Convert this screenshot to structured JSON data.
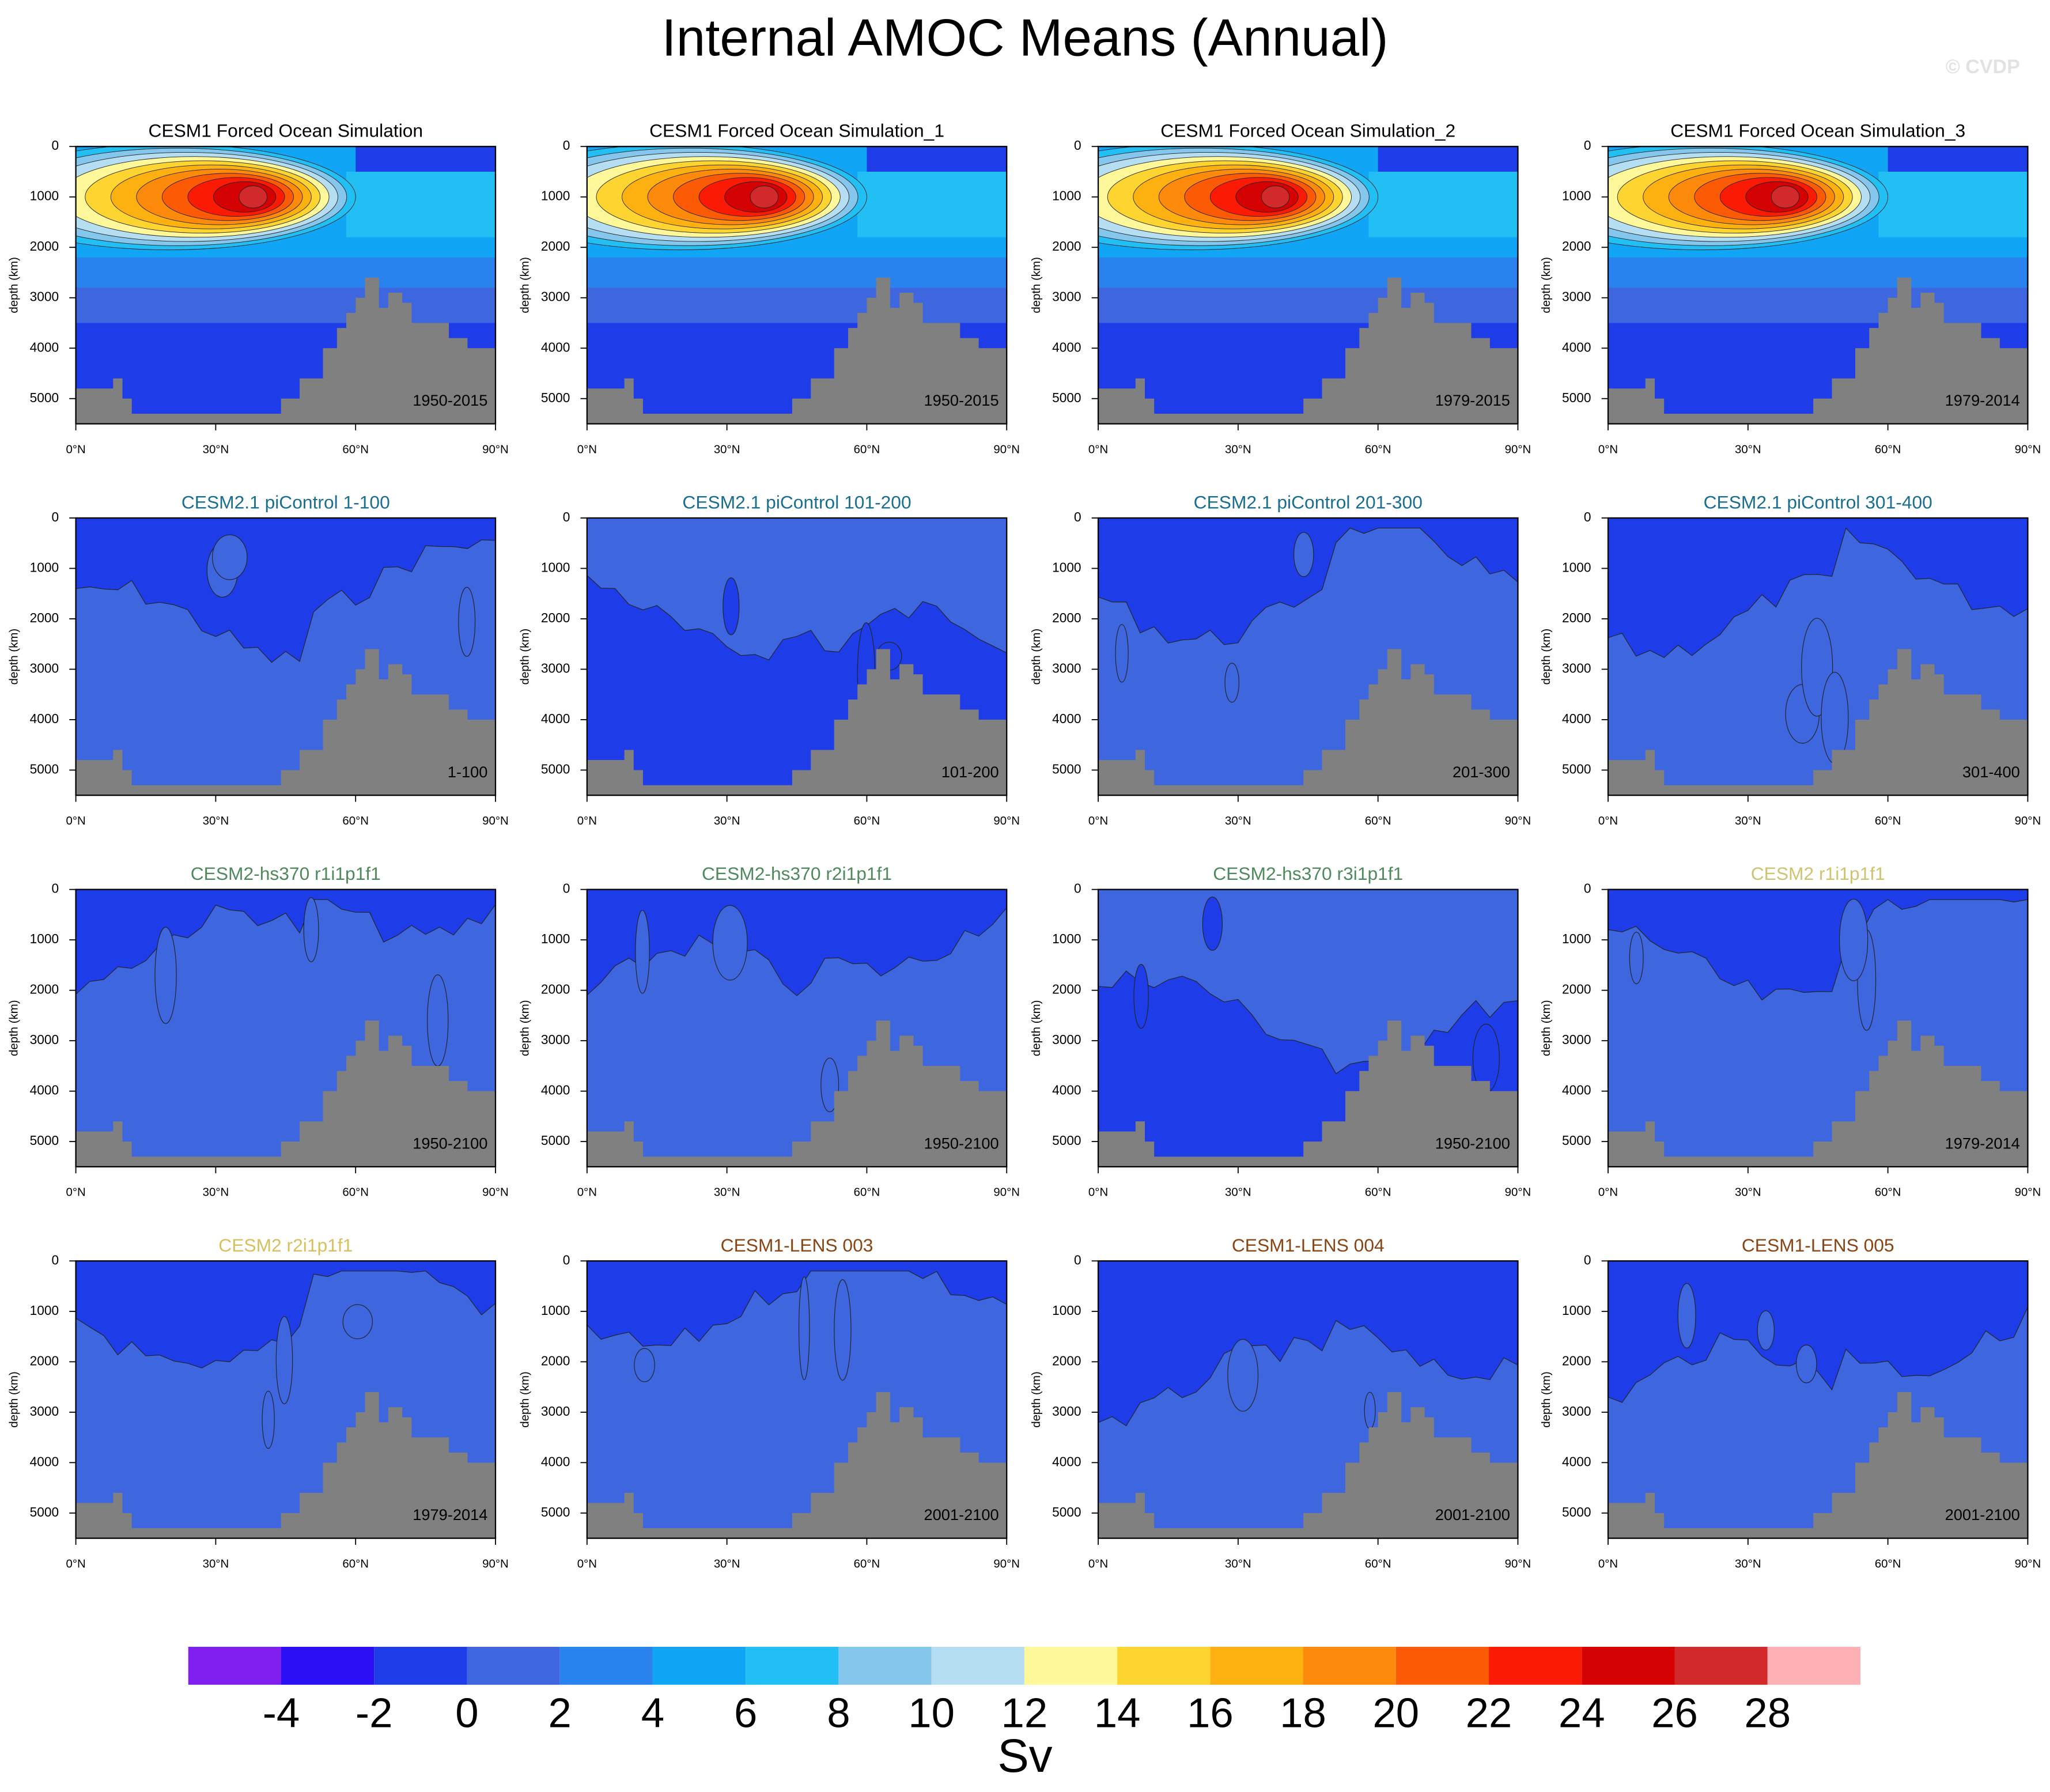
{
  "title": "Internal AMOC Means (Annual)",
  "watermark": "© CVDP",
  "axes": {
    "ylabel": "depth (km)",
    "xlim": [
      0,
      90
    ],
    "ylim": [
      0,
      5500
    ],
    "yreverse": true,
    "xticks": [
      {
        "value": 0,
        "label": "0°N"
      },
      {
        "value": 30,
        "label": "30°N"
      },
      {
        "value": 60,
        "label": "60°N"
      },
      {
        "value": 90,
        "label": "90°N"
      }
    ],
    "yticks": [
      0,
      1000,
      2000,
      3000,
      4000,
      5000
    ]
  },
  "chart_data": [
    {
      "type": "contour",
      "title": "CESM1 Forced Ocean Simulation",
      "title_color": "#000000",
      "annotation": "1950-2015"
    },
    {
      "type": "contour",
      "title": "CESM1 Forced Ocean Simulation_1",
      "title_color": "#000000",
      "annotation": "1950-2015"
    },
    {
      "type": "contour",
      "title": "CESM1 Forced Ocean Simulation_2",
      "title_color": "#000000",
      "annotation": "1979-2015"
    },
    {
      "type": "contour",
      "title": "CESM1 Forced Ocean Simulation_3",
      "title_color": "#000000",
      "annotation": "1979-2014"
    },
    {
      "type": "contour",
      "title": "CESM2.1 piControl 1-100",
      "title_color": "#1a6e8e",
      "annotation": "1-100"
    },
    {
      "type": "contour",
      "title": "CESM2.1 piControl 101-200",
      "title_color": "#1a6e8e",
      "annotation": "101-200"
    },
    {
      "type": "contour",
      "title": "CESM2.1 piControl 201-300",
      "title_color": "#1a6e8e",
      "annotation": "201-300"
    },
    {
      "type": "contour",
      "title": "CESM2.1 piControl 301-400",
      "title_color": "#1a6e8e",
      "annotation": "301-400"
    },
    {
      "type": "contour",
      "title": "CESM2-hs370 r1i1p1f1",
      "title_color": "#4f8a5c",
      "annotation": "1950-2100"
    },
    {
      "type": "contour",
      "title": "CESM2-hs370 r2i1p1f1",
      "title_color": "#4f8a5c",
      "annotation": "1950-2100"
    },
    {
      "type": "contour",
      "title": "CESM2-hs370 r3i1p1f1",
      "title_color": "#4f8a5c",
      "annotation": "1950-2100"
    },
    {
      "type": "contour",
      "title": "CESM2 r1i1p1f1",
      "title_color": "#cfc470",
      "annotation": "1979-2014"
    },
    {
      "type": "contour",
      "title": "CESM2 r2i1p1f1",
      "title_color": "#d8c060",
      "annotation": "1979-2014"
    },
    {
      "type": "contour",
      "title": "CESM1-LENS 003",
      "title_color": "#8b4513",
      "annotation": "2001-2100"
    },
    {
      "type": "contour",
      "title": "CESM1-LENS 004",
      "title_color": "#8b4513",
      "annotation": "2001-2100"
    },
    {
      "type": "contour",
      "title": "CESM1-LENS 005",
      "title_color": "#8b4513",
      "annotation": "2001-2100"
    }
  ],
  "colorbar": {
    "label": "Sv",
    "levels": [
      -4,
      -2,
      0,
      2,
      4,
      6,
      8,
      10,
      12,
      14,
      16,
      18,
      20,
      22,
      24,
      26,
      28
    ],
    "colors": [
      "#7f1ff0",
      "#2a0ff5",
      "#1e3de8",
      "#3e66de",
      "#2a82ef",
      "#11a5f5",
      "#22bff5",
      "#85c6ec",
      "#b6def2",
      "#fef89a",
      "#fed530",
      "#fdb110",
      "#fd8a0a",
      "#fd5a05",
      "#fb1a04",
      "#d40202",
      "#d22a2a",
      "#fdb1b5"
    ]
  }
}
